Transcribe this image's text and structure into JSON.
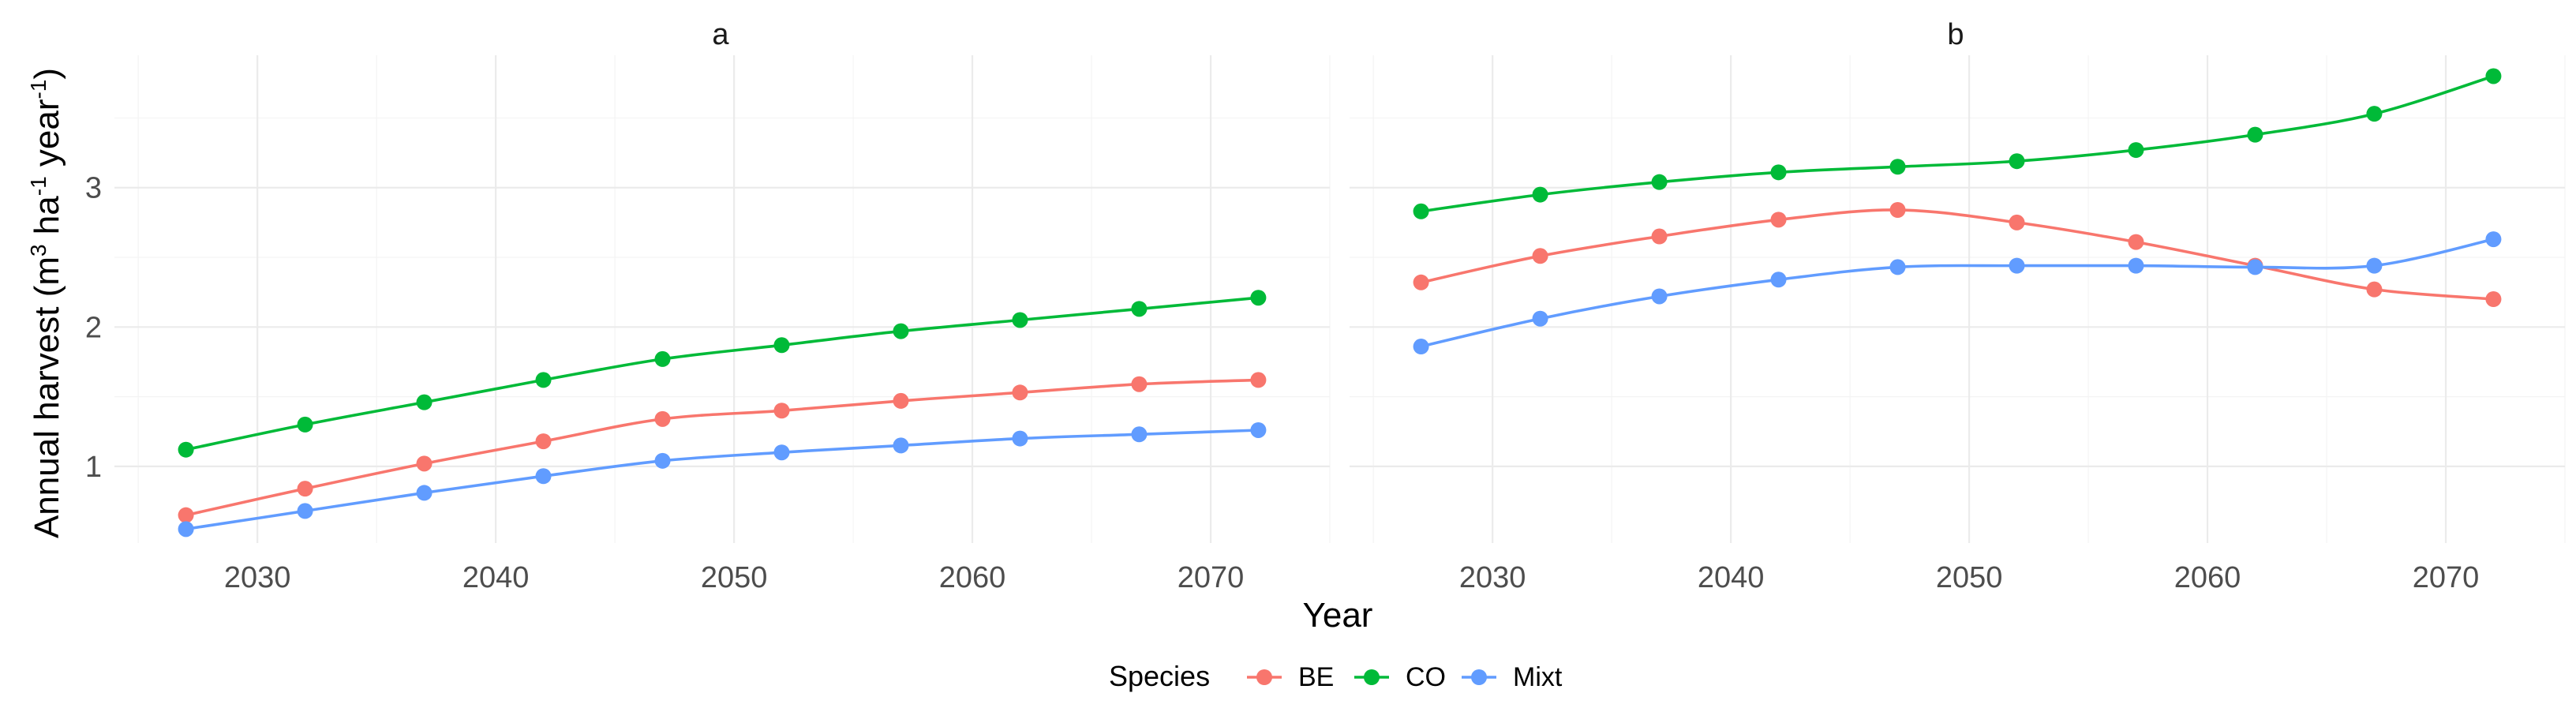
{
  "chart_data": {
    "type": "line",
    "ylabel": "Annual harvest (m³ ha⁻¹ year⁻¹)",
    "ylabel_parts": {
      "prefix": "Annual harvest (m",
      "sup1": "3",
      "mid1": " ha",
      "sup2": "-1",
      "mid2": " year",
      "sup3": "-1",
      "suffix": ")"
    },
    "xlabel": "Year",
    "xlim": [
      2024,
      2075
    ],
    "ylim": [
      0.45,
      3.95
    ],
    "x_ticks": [
      2030,
      2040,
      2050,
      2060,
      2070
    ],
    "x_minor_ticks": [
      2025,
      2035,
      2045,
      2055,
      2065,
      2075
    ],
    "y_ticks": [
      1,
      2,
      3
    ],
    "y_minor_ticks": [
      1.5,
      2.5,
      3.5
    ],
    "x": [
      2027,
      2032,
      2037,
      2042,
      2047,
      2052,
      2057,
      2062,
      2067,
      2072
    ],
    "legend": {
      "title": "Species",
      "position": "bottom",
      "entries": [
        "BE",
        "CO",
        "Mixt"
      ]
    },
    "colors": {
      "BE": "#F8766D",
      "CO": "#00BA38",
      "Mixt": "#619CFF"
    },
    "panels": [
      {
        "title": "a",
        "series": [
          {
            "name": "BE",
            "values": [
              0.65,
              0.84,
              1.02,
              1.18,
              1.34,
              1.4,
              1.47,
              1.53,
              1.59,
              1.62
            ]
          },
          {
            "name": "CO",
            "values": [
              1.12,
              1.3,
              1.46,
              1.62,
              1.77,
              1.87,
              1.97,
              2.05,
              2.13,
              2.21
            ]
          },
          {
            "name": "Mixt",
            "values": [
              0.55,
              0.68,
              0.81,
              0.93,
              1.04,
              1.1,
              1.15,
              1.2,
              1.23,
              1.26
            ]
          }
        ]
      },
      {
        "title": "b",
        "series": [
          {
            "name": "BE",
            "values": [
              2.32,
              2.51,
              2.65,
              2.77,
              2.84,
              2.75,
              2.61,
              2.44,
              2.27,
              2.2
            ]
          },
          {
            "name": "CO",
            "values": [
              2.83,
              2.95,
              3.04,
              3.11,
              3.15,
              3.19,
              3.27,
              3.38,
              3.53,
              3.8
            ]
          },
          {
            "name": "Mixt",
            "values": [
              1.86,
              2.06,
              2.22,
              2.34,
              2.43,
              2.44,
              2.44,
              2.43,
              2.44,
              2.63
            ]
          }
        ]
      }
    ]
  }
}
